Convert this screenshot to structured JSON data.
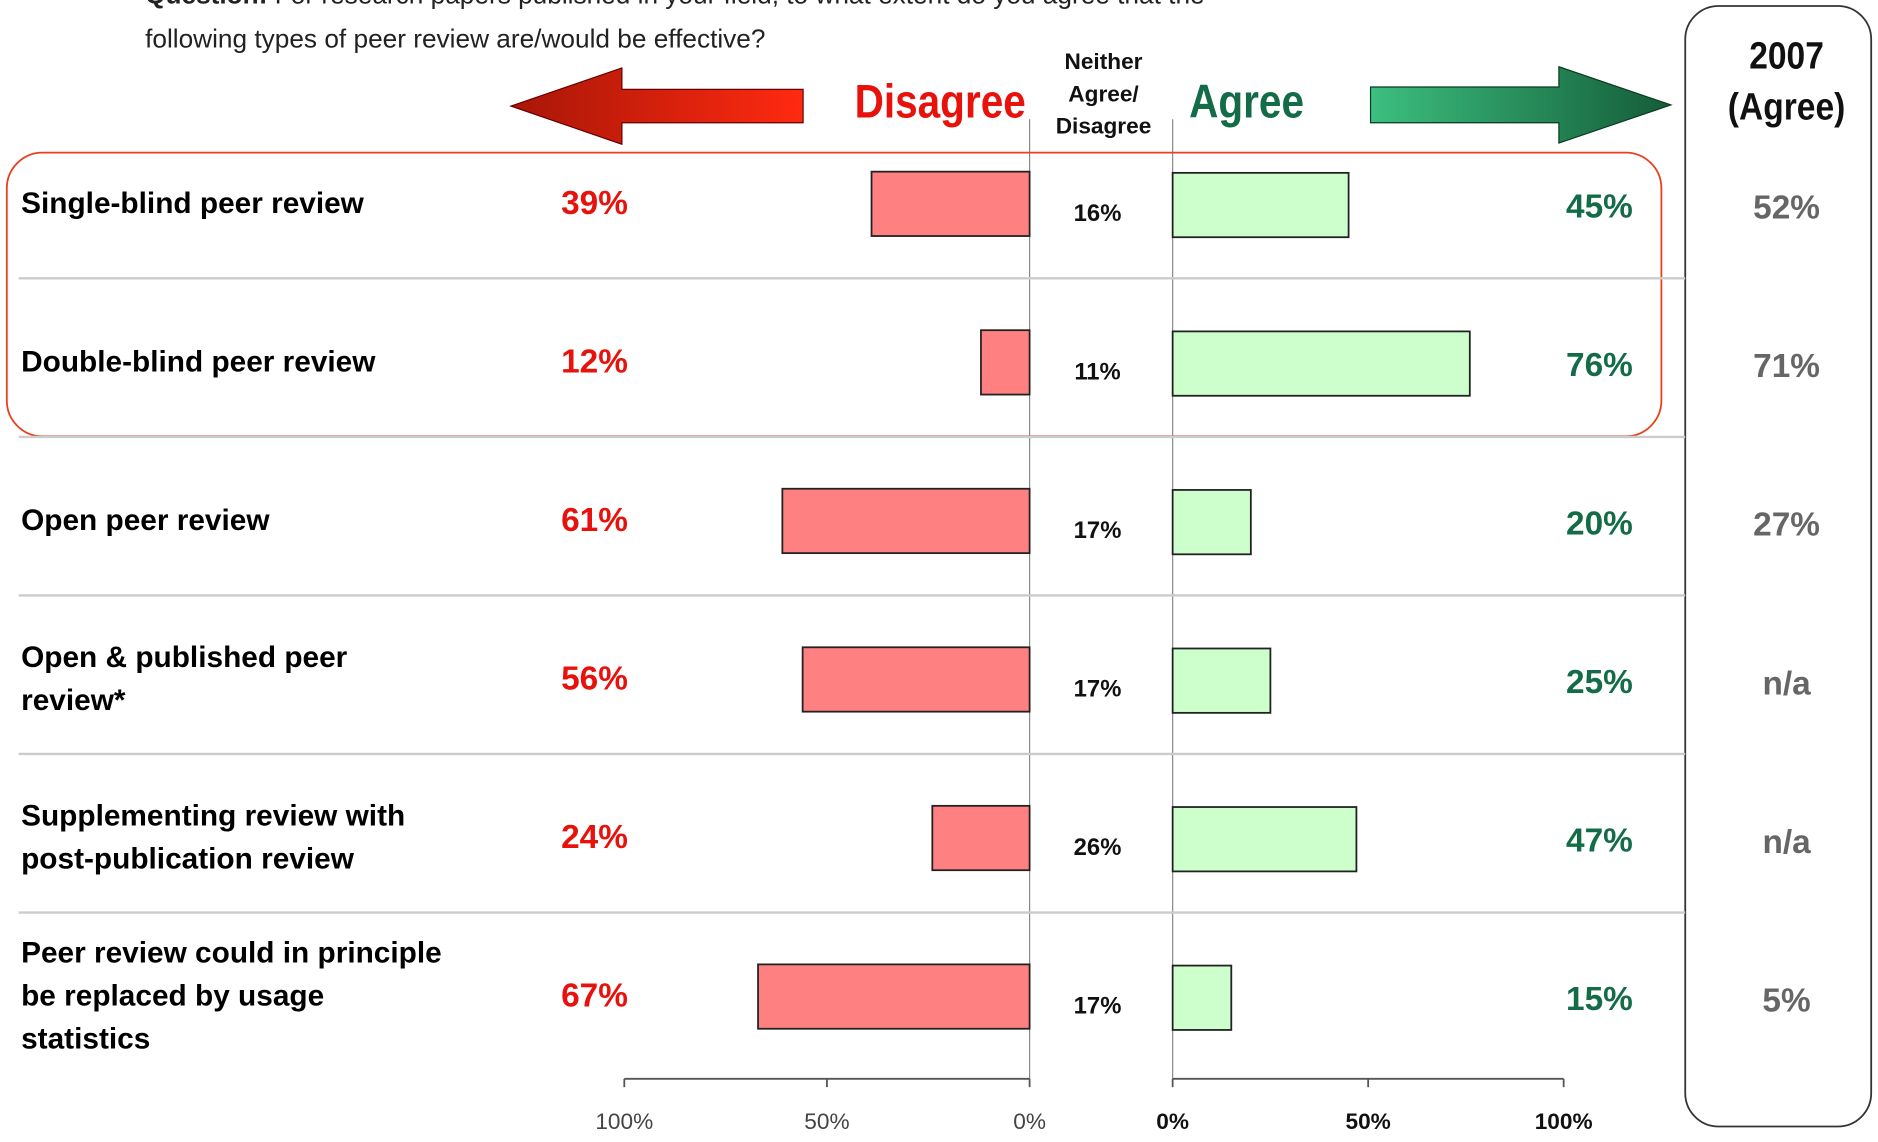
{
  "chart_data": {
    "type": "diverging_bar",
    "question_label": "Question:",
    "question": [
      "For research papers published in your field, to what extent do you agree that the",
      "following types of peer review are/would be effective?"
    ],
    "categories": [
      [
        "Single-blind peer review"
      ],
      [
        "Double-blind peer review"
      ],
      [
        "Open peer review"
      ],
      [
        "Open & published peer",
        "review*"
      ],
      [
        "Supplementing review with",
        "post-publication review"
      ],
      [
        "Peer review could in principle",
        "be replaced by usage",
        "statistics"
      ]
    ],
    "series": [
      {
        "name": [
          "Disagree"
        ],
        "color": "#ff8080",
        "axis": "left",
        "values": [
          39,
          12,
          61,
          56,
          24,
          67
        ],
        "value_labels": [
          "39%",
          "12%",
          "61%",
          "56%",
          "24%",
          "67%"
        ]
      },
      {
        "name": [
          "Neither",
          "Agree/",
          "Disagree"
        ],
        "values": [
          16,
          11,
          17,
          17,
          26,
          17
        ],
        "value_labels": [
          "16%",
          "11%",
          "17%",
          "17%",
          "26%",
          "17%"
        ]
      },
      {
        "name": [
          "Agree"
        ],
        "color": "#ccffcc",
        "axis": "right",
        "values": [
          45,
          76,
          20,
          25,
          47,
          15
        ],
        "value_labels": [
          "45%",
          "76%",
          "20%",
          "25%",
          "47%",
          "15%"
        ]
      }
    ],
    "axes": {
      "left": {
        "xlim": [
          100,
          0
        ],
        "xticks": [
          {
            "value": 100,
            "label": "100%"
          },
          {
            "value": 50,
            "label": "50%"
          },
          {
            "value": 0,
            "label": "0%"
          }
        ]
      },
      "right": {
        "xlim": [
          0,
          100
        ],
        "xticks": [
          {
            "value": 0,
            "label": "0%"
          },
          {
            "value": 50,
            "label": "50%"
          },
          {
            "value": 100,
            "label": "100%"
          }
        ]
      }
    },
    "extra_column": {
      "title": [
        "2007",
        "(Agree)"
      ],
      "labels": [
        "52%",
        "71%",
        "27%",
        "n/a",
        "n/a",
        "5%"
      ]
    }
  }
}
